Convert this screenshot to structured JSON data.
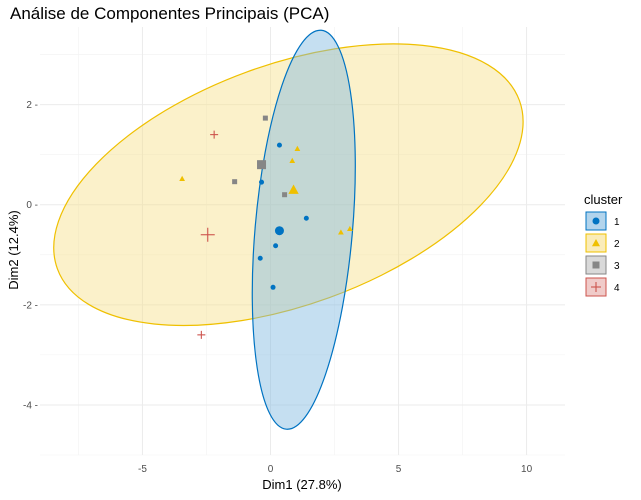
{
  "chart_data": {
    "type": "scatter",
    "title": "Análise de Componentes Principais (PCA)",
    "xlabel": "Dim1 (27.8%)",
    "ylabel": "Dim2 (12.4%)",
    "xlim": [
      -9.0,
      11.5
    ],
    "ylim": [
      -5.0,
      3.55
    ],
    "x_ticks": [
      -5,
      0,
      5,
      10
    ],
    "y_ticks": [
      2,
      0,
      -2,
      -4
    ],
    "x_tick_labels": [
      "-5",
      "0",
      "5",
      "10"
    ],
    "y_tick_labels": [
      "2 -",
      "0 -",
      "-2 -",
      "-4 -"
    ],
    "grid": true,
    "legend": {
      "title": "cluster",
      "position": "right"
    },
    "series": [
      {
        "label": "1",
        "color": "#0073C2",
        "fill": "#7FB8E0",
        "marker": "circle",
        "points": [
          [
            0.35,
            1.19
          ],
          [
            -0.35,
            0.45
          ],
          [
            1.4,
            -0.27
          ],
          [
            0.2,
            -0.82
          ],
          [
            -0.4,
            -1.07
          ],
          [
            0.1,
            -1.65
          ]
        ],
        "center": [
          0.35,
          -0.52
        ],
        "ellipse": {
          "cx": 1.3,
          "cy": -0.5,
          "rx": 1.9,
          "ry": 4.0,
          "angle_deg": 5
        }
      },
      {
        "label": "2",
        "color": "#EFC000",
        "fill": "#F7E08A",
        "marker": "triangle",
        "points": [
          [
            1.05,
            1.12
          ],
          [
            0.85,
            0.88
          ],
          [
            -3.45,
            0.52
          ],
          [
            0.9,
            0.3
          ],
          [
            2.75,
            -0.55
          ],
          [
            3.1,
            -0.48
          ]
        ],
        "center": [
          0.9,
          0.3
        ],
        "ellipse": {
          "cx": 0.7,
          "cy": 0.4,
          "rx": 9.6,
          "ry": 2.4,
          "angle_deg": -20
        }
      },
      {
        "label": "3",
        "color": "#868686",
        "fill": "#BFBFBF",
        "marker": "square",
        "points": [
          [
            -0.2,
            1.73
          ],
          [
            -1.4,
            0.46
          ],
          [
            0.55,
            0.2
          ]
        ],
        "center": [
          -0.35,
          0.8
        ]
      },
      {
        "label": "4",
        "color": "#CD534C",
        "fill": "#E6A9A5",
        "marker": "cross",
        "points": [
          [
            -2.2,
            1.4
          ],
          [
            -2.7,
            -2.6
          ]
        ],
        "center": [
          -2.45,
          -0.6
        ]
      }
    ]
  }
}
